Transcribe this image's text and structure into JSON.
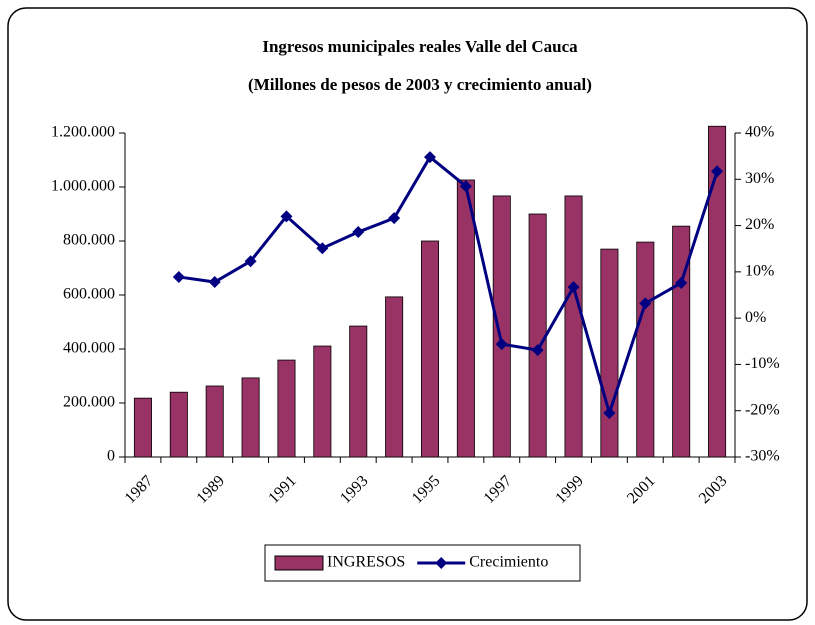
{
  "chart_data": {
    "type": "bar-line",
    "title": "Ingresos municipales reales Valle del Cauca",
    "subtitle": "(Millones de pesos de 2003 y crecimiento anual)",
    "categories": [
      "1987",
      null,
      "1989",
      null,
      "1991",
      null,
      "1993",
      null,
      "1995",
      null,
      "1997",
      null,
      "1999",
      null,
      "2001",
      null,
      "2003"
    ],
    "series": [
      {
        "name": "INGRESOS",
        "type": "bar",
        "color": "#993366",
        "values": [
          218000,
          240000,
          263000,
          293000,
          359000,
          411000,
          485000,
          593000,
          800000,
          1026000,
          967000,
          900000,
          967000,
          770000,
          796000,
          855000,
          1225000
        ]
      },
      {
        "name": "Crecimiento",
        "type": "line",
        "axis": "y2",
        "color": "#000080",
        "values": [
          null,
          8.9,
          7.8,
          12.3,
          22.0,
          15.1,
          18.6,
          21.6,
          34.8,
          28.5,
          -5.6,
          -6.9,
          6.7,
          -20.5,
          3.2,
          7.6,
          31.7
        ]
      }
    ],
    "ylim": [
      0,
      1200000
    ],
    "yticks": [
      0,
      {
        "value": 200000,
        "label": "200.000"
      },
      {
        "value": 400000,
        "label": "400.000"
      },
      {
        "value": 600000,
        "label": "600.000"
      },
      {
        "value": 800000,
        "label": "800.000"
      },
      {
        "value": 1000000,
        "label": "1.000.000"
      },
      {
        "value": 1200000,
        "label": "1.200.000"
      }
    ],
    "y2lim": [
      -30,
      40
    ],
    "y2ticks": [
      {
        "value": -30,
        "label": "-30%"
      },
      {
        "value": -20,
        "label": "-20%"
      },
      {
        "value": -10,
        "label": "-10%"
      },
      {
        "value": 0,
        "label": "0%"
      },
      {
        "value": 10,
        "label": "10%"
      },
      {
        "value": 20,
        "label": "20%"
      },
      {
        "value": 30,
        "label": "30%"
      },
      {
        "value": 40,
        "label": "40%"
      }
    ],
    "grid": false,
    "legend": "bottom"
  }
}
